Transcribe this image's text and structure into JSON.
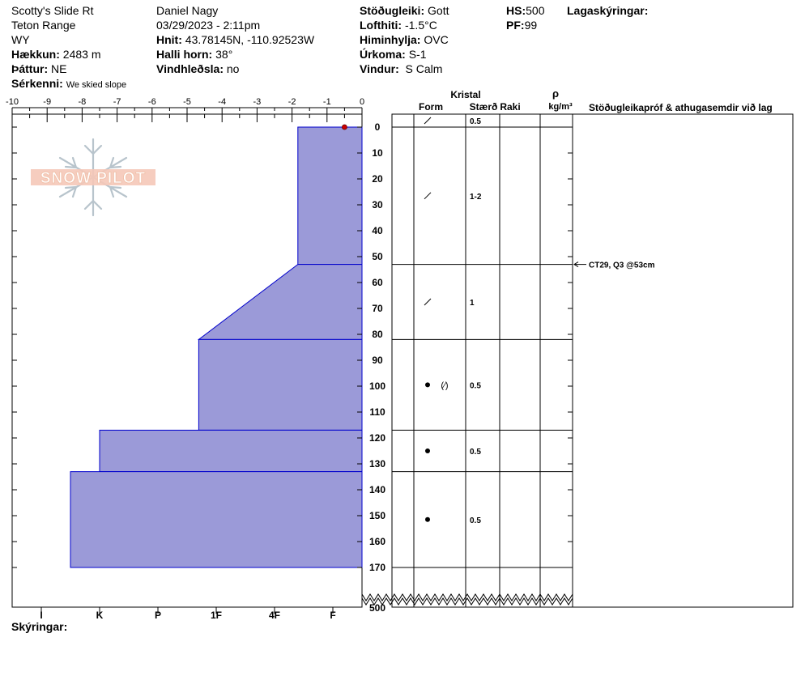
{
  "header": {
    "location": "Scotty's Slide Rt",
    "range": "Teton Range",
    "state": "WY",
    "elevation_label": "Hækkun:",
    "elevation": "2483 m",
    "aspect_label": "Þáttur:",
    "aspect": "NE",
    "features_label": "Sérkenni:",
    "features": "We skied slope",
    "observer": "Daniel Nagy",
    "datetime": "03/29/2023 - 2:11pm",
    "coords_label": "Hnit:",
    "coords": "43.78145N, -110.92523W",
    "slope_label": "Halli horn:",
    "slope": "38°",
    "wind_loading_label": "Vindhleðsla:",
    "wind_loading": "no",
    "stability_label": "Stöðugleiki:",
    "stability": "Gott",
    "air_temp_label": "Lofthiti:",
    "air_temp": "-1.5°C",
    "sky_label": "Himinhylja:",
    "sky": "OVC",
    "precip_label": "Úrkoma:",
    "precip": "S-1",
    "wind_label": "Vindur:",
    "wind": "S Calm",
    "hs_label": "HS:",
    "hs": "500",
    "pf_label": "PF:",
    "pf": "99",
    "layer_notes_label": "Lagaskýringar:",
    "notes_label": "Skýringar:"
  },
  "table_headers": {
    "crystal": "Kristal",
    "form": "Form",
    "size": "Stærð",
    "moisture": "Raki",
    "rho": "ρ",
    "density_unit": "kg/m³",
    "comments": "Stöðugleikapróf & athugasemdir við lag"
  },
  "logo_text": "SNOW PILOT",
  "colors": {
    "profile_fill": "#9b9ad8",
    "profile_edge": "#0000cc",
    "temp_marker": "#cc0000"
  },
  "chart_data": {
    "type": "area",
    "x_ticks": [
      -10,
      -9,
      -8,
      -7,
      -6,
      -5,
      -4,
      -3,
      -2,
      -1,
      0
    ],
    "depth_ticks": [
      0,
      10,
      20,
      30,
      40,
      50,
      60,
      70,
      80,
      90,
      100,
      110,
      120,
      130,
      140,
      150,
      160,
      170
    ],
    "depth_bottom_label": "500",
    "hardness_labels": [
      "I",
      "K",
      "P",
      "1F",
      "4F",
      "F"
    ],
    "temperature_points": [
      {
        "temp": -0.5,
        "depth": 0
      }
    ],
    "hardness_profile": [
      {
        "top": 0,
        "bottom": 53,
        "hardness_top": 1.1,
        "hardness_bottom": 1.1
      },
      {
        "top": 53,
        "bottom": 82,
        "hardness_top": 1.1,
        "hardness_bottom": 2.8
      },
      {
        "top": 82,
        "bottom": 117,
        "hardness_top": 2.8,
        "hardness_bottom": 2.8
      },
      {
        "top": 117,
        "bottom": 133,
        "hardness_top": 4.5,
        "hardness_bottom": 4.5
      },
      {
        "top": 133,
        "bottom": 170,
        "hardness_top": 5.0,
        "hardness_bottom": 5.0
      }
    ],
    "layers": [
      {
        "top": 0,
        "bottom": 0,
        "form": "slash",
        "form_text": "",
        "size": "0.5"
      },
      {
        "top": 0,
        "bottom": 53,
        "form": "slash",
        "form_text": "",
        "size": "1-2"
      },
      {
        "top": 53,
        "bottom": 82,
        "form": "slash",
        "form_text": "",
        "size": "1"
      },
      {
        "top": 82,
        "bottom": 117,
        "form": "dot",
        "form_text": "(⁄)",
        "size": "0.5"
      },
      {
        "top": 117,
        "bottom": 133,
        "form": "dot",
        "form_text": "",
        "size": "0.5"
      },
      {
        "top": 133,
        "bottom": 170,
        "form": "dot",
        "form_text": "",
        "size": "0.5"
      }
    ],
    "tests": [
      {
        "depth": 53,
        "text": "CT29, Q3 @53cm"
      }
    ]
  }
}
